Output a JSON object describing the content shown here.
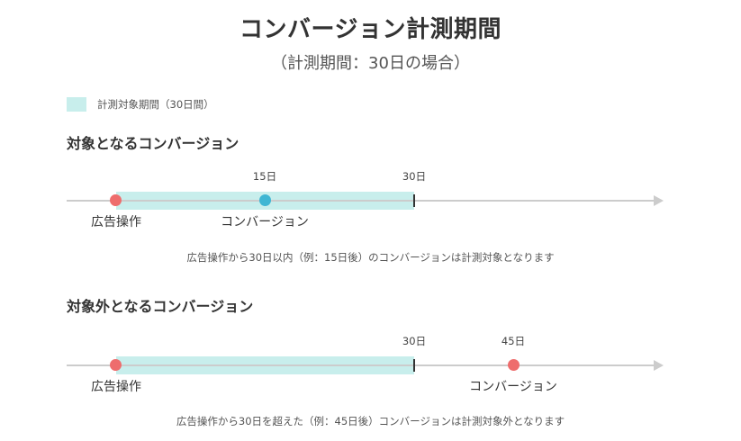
{
  "title": "コンバージョン計測期間",
  "subtitle": "（計測期間：30日の場合）",
  "legend": {
    "label": "計測対象期間（30日間）",
    "color": "#c8eeec"
  },
  "colors": {
    "ad_event": "#ee6d6d",
    "conversion_inside": "#3fb6d3",
    "axis": "#cccccc"
  },
  "section1": {
    "title": "対象となるコンバージョン",
    "tick_15": "15日",
    "tick_30": "30日",
    "start_label": "広告操作",
    "conversion_label": "コンバージョン",
    "note": "広告操作から30日以内（例：15日後）のコンバージョンは計測対象となります"
  },
  "section2": {
    "title": "対象外となるコンバージョン",
    "tick_30": "30日",
    "tick_45": "45日",
    "start_label": "広告操作",
    "conversion_label": "コンバージョン",
    "note": "広告操作から30日を超えた（例：45日後）コンバージョンは計測対象外となります"
  }
}
